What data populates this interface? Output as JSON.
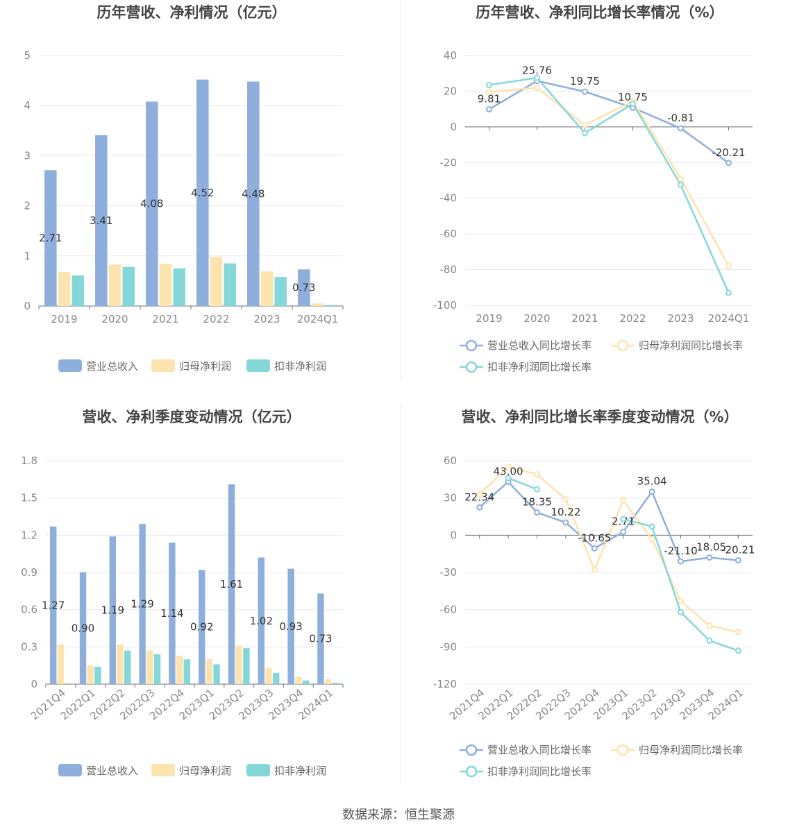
{
  "colors": {
    "revenue": "#8eaedc",
    "net_profit": "#fde3ae",
    "deducted_profit": "#84d7d9"
  },
  "legend_bar": [
    "营业总收入",
    "归母净利润",
    "扣非净利润"
  ],
  "legend_line": [
    "营业总收入同比增长率",
    "归母净利润同比增长率",
    "扣非净利润同比增长率"
  ],
  "source": "数据来源：恒生聚源",
  "chart_data": [
    {
      "type": "bar",
      "title": "历年营收、净利情况（亿元）",
      "categories": [
        "2019",
        "2020",
        "2021",
        "2022",
        "2023",
        "2024Q1"
      ],
      "ylim": [
        0,
        5
      ],
      "yticks": [
        0,
        1,
        2,
        3,
        4,
        5
      ],
      "series": [
        {
          "name": "营业总收入",
          "values": [
            2.71,
            3.41,
            4.08,
            4.52,
            4.48,
            0.73
          ],
          "labels": [
            "2.71",
            "3.41",
            "4.08",
            "4.52",
            "4.48",
            "0.73"
          ]
        },
        {
          "name": "归母净利润",
          "values": [
            0.68,
            0.83,
            0.84,
            0.98,
            0.69,
            0.05
          ]
        },
        {
          "name": "扣非净利润",
          "values": [
            0.61,
            0.78,
            0.75,
            0.85,
            0.58,
            0.02
          ]
        }
      ]
    },
    {
      "type": "line",
      "title": "历年营收、净利同比增长率情况（%）",
      "categories": [
        "2019",
        "2020",
        "2021",
        "2022",
        "2023",
        "2024Q1"
      ],
      "ylim": [
        -100,
        40
      ],
      "yticks": [
        -100,
        -80,
        -60,
        -40,
        -20,
        0,
        20,
        40
      ],
      "series": [
        {
          "name": "营业总收入同比增长率",
          "values": [
            9.81,
            25.76,
            19.75,
            10.75,
            -0.81,
            -20.21
          ],
          "labels": [
            "9.81",
            "25.76",
            "19.75",
            "10.75",
            "-0.81",
            "-20.21"
          ]
        },
        {
          "name": "归母净利润同比增长率",
          "values": [
            19.5,
            22.0,
            1.0,
            14.5,
            -29.0,
            -78.0
          ]
        },
        {
          "name": "扣非净利润同比增长率",
          "values": [
            23.5,
            27.5,
            -3.5,
            13.0,
            -32.5,
            -93.0
          ]
        }
      ]
    },
    {
      "type": "bar",
      "title": "营收、净利季度变动情况（亿元）",
      "categories": [
        "2021Q4",
        "2022Q1",
        "2022Q2",
        "2022Q3",
        "2022Q4",
        "2023Q1",
        "2023Q2",
        "2023Q3",
        "2023Q4",
        "2024Q1"
      ],
      "ylim": [
        0,
        1.8
      ],
      "yticks": [
        0,
        0.3,
        0.6,
        0.9,
        1.2,
        1.5,
        1.8
      ],
      "series": [
        {
          "name": "营业总收入",
          "values": [
            1.27,
            0.9,
            1.19,
            1.29,
            1.14,
            0.92,
            1.61,
            1.02,
            0.93,
            0.73
          ],
          "labels": [
            "1.27",
            "0.90",
            "1.19",
            "1.29",
            "1.14",
            "0.92",
            "1.61",
            "1.02",
            "0.93",
            "0.73"
          ]
        },
        {
          "name": "归母净利润",
          "values": [
            0.32,
            0.15,
            0.32,
            0.27,
            0.23,
            0.2,
            0.31,
            0.13,
            0.06,
            0.04
          ]
        },
        {
          "name": "扣非净利润",
          "values": [
            0.0,
            0.14,
            0.27,
            0.24,
            0.2,
            0.16,
            0.29,
            0.09,
            0.03,
            0.01
          ]
        }
      ]
    },
    {
      "type": "line",
      "title": "营收、净利同比增长率季度变动情况（%）",
      "categories": [
        "2021Q4",
        "2022Q1",
        "2022Q2",
        "2022Q3",
        "2022Q4",
        "2023Q1",
        "2023Q2",
        "2023Q3",
        "2023Q4",
        "2024Q1"
      ],
      "ylim": [
        -120,
        60
      ],
      "yticks": [
        -120,
        -90,
        -60,
        -30,
        0,
        30,
        60
      ],
      "series": [
        {
          "name": "营业总收入同比增长率",
          "values": [
            22.34,
            43.0,
            18.35,
            10.22,
            -10.65,
            2.71,
            35.04,
            -21.1,
            -18.05,
            -20.21
          ],
          "labels": [
            "22.34",
            "43.00",
            "18.35",
            "10.22",
            "-10.65",
            "2.71",
            "35.04",
            "-21.10",
            "-18.05",
            "-20.21"
          ]
        },
        {
          "name": "归母净利润同比增长率",
          "values": [
            33.0,
            55.0,
            49.0,
            29.0,
            -28.0,
            28.0,
            -3.0,
            -53.0,
            -73.0,
            -78.0
          ]
        },
        {
          "name": "扣非净利润同比增长率",
          "values": [
            null,
            46.0,
            37.0,
            null,
            null,
            13.0,
            7.0,
            -62.0,
            -85.0,
            -93.0
          ]
        }
      ]
    }
  ]
}
